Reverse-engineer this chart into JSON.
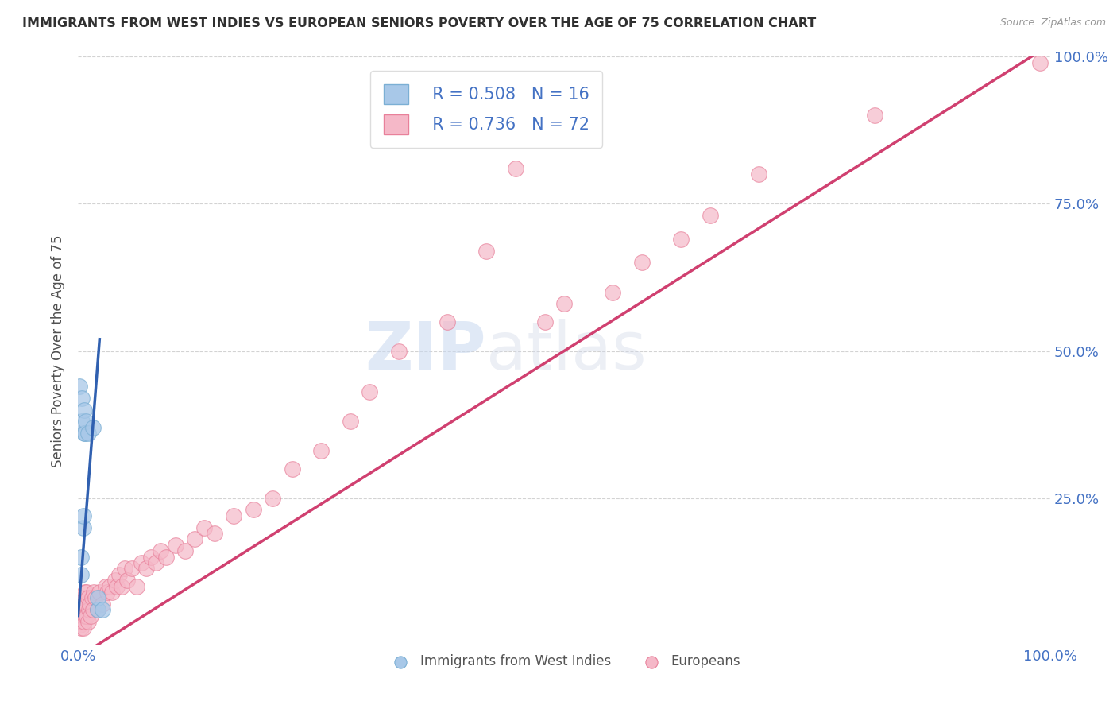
{
  "title": "IMMIGRANTS FROM WEST INDIES VS EUROPEAN SENIORS POVERTY OVER THE AGE OF 75 CORRELATION CHART",
  "source": "Source: ZipAtlas.com",
  "ylabel": "Seniors Poverty Over the Age of 75",
  "xlim": [
    0,
    1.0
  ],
  "ylim": [
    0,
    1.0
  ],
  "xticks": [
    0.0,
    0.25,
    0.5,
    0.75,
    1.0
  ],
  "xticklabels": [
    "0.0%",
    "",
    "",
    "",
    "100.0%"
  ],
  "yticks": [
    0.0,
    0.25,
    0.5,
    0.75,
    1.0
  ],
  "yticklabels": [
    "",
    "25.0%",
    "50.0%",
    "75.0%",
    "100.0%"
  ],
  "legend_r1": "R = 0.508",
  "legend_n1": "N = 16",
  "legend_r2": "R = 0.736",
  "legend_n2": "N = 72",
  "blue_scatter_color": "#a8c8e8",
  "blue_edge_color": "#7bafd4",
  "pink_scatter_color": "#f5b8c8",
  "pink_edge_color": "#e8809a",
  "trend_blue_color": "#3060b0",
  "trend_pink_color": "#d04070",
  "watermark_zip": "ZIP",
  "watermark_atlas": "atlas",
  "background_color": "#ffffff",
  "grid_color": "#c8c8c8",
  "title_color": "#303030",
  "axis_label_color": "#505050",
  "tick_label_color": "#4472c4",
  "west_indies_x": [
    0.001,
    0.003,
    0.003,
    0.004,
    0.004,
    0.005,
    0.005,
    0.006,
    0.006,
    0.007,
    0.008,
    0.01,
    0.015,
    0.02,
    0.02,
    0.025
  ],
  "west_indies_y": [
    0.44,
    0.12,
    0.15,
    0.38,
    0.42,
    0.2,
    0.22,
    0.36,
    0.4,
    0.36,
    0.38,
    0.36,
    0.37,
    0.06,
    0.08,
    0.06
  ],
  "europeans_x": [
    0.001,
    0.002,
    0.002,
    0.003,
    0.003,
    0.003,
    0.004,
    0.004,
    0.005,
    0.005,
    0.006,
    0.006,
    0.007,
    0.007,
    0.008,
    0.009,
    0.009,
    0.01,
    0.01,
    0.011,
    0.012,
    0.013,
    0.014,
    0.015,
    0.016,
    0.018,
    0.02,
    0.022,
    0.025,
    0.028,
    0.03,
    0.032,
    0.035,
    0.038,
    0.04,
    0.042,
    0.045,
    0.048,
    0.05,
    0.055,
    0.06,
    0.065,
    0.07,
    0.075,
    0.08,
    0.085,
    0.09,
    0.1,
    0.11,
    0.12,
    0.13,
    0.14,
    0.16,
    0.18,
    0.2,
    0.22,
    0.25,
    0.28,
    0.3,
    0.33,
    0.38,
    0.42,
    0.45,
    0.48,
    0.5,
    0.55,
    0.58,
    0.62,
    0.65,
    0.7,
    0.82,
    0.99
  ],
  "europeans_y": [
    0.04,
    0.035,
    0.06,
    0.03,
    0.05,
    0.07,
    0.04,
    0.06,
    0.03,
    0.08,
    0.04,
    0.07,
    0.05,
    0.09,
    0.07,
    0.05,
    0.09,
    0.04,
    0.08,
    0.06,
    0.07,
    0.05,
    0.08,
    0.06,
    0.09,
    0.08,
    0.06,
    0.09,
    0.07,
    0.1,
    0.09,
    0.1,
    0.09,
    0.11,
    0.1,
    0.12,
    0.1,
    0.13,
    0.11,
    0.13,
    0.1,
    0.14,
    0.13,
    0.15,
    0.14,
    0.16,
    0.15,
    0.17,
    0.16,
    0.18,
    0.2,
    0.19,
    0.22,
    0.23,
    0.25,
    0.3,
    0.33,
    0.38,
    0.43,
    0.5,
    0.55,
    0.67,
    0.81,
    0.55,
    0.58,
    0.6,
    0.65,
    0.69,
    0.73,
    0.8,
    0.9,
    0.99
  ],
  "blue_trend_x": [
    0.001,
    0.025
  ],
  "blue_trend_y_start": 0.08,
  "blue_trend_y_end": 0.5,
  "pink_trend_x": [
    0.0,
    1.0
  ],
  "pink_trend_y": [
    0.0,
    1.0
  ]
}
